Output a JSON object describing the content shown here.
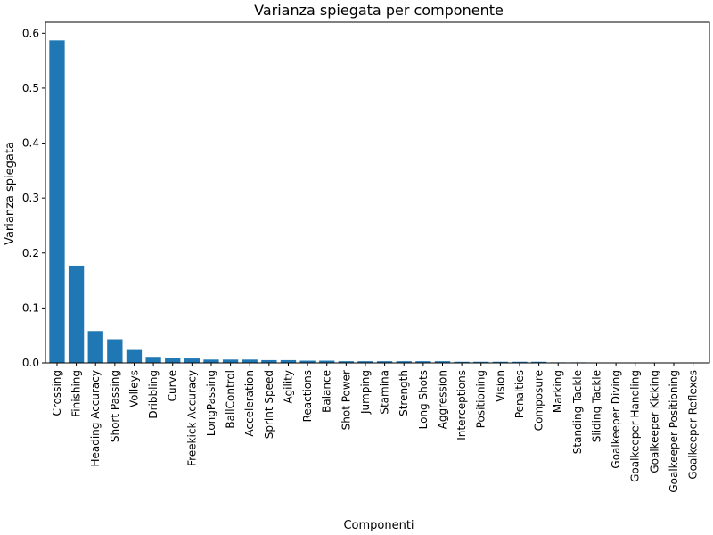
{
  "chart_data": {
    "type": "bar",
    "title": "Varianza spiegata per componente",
    "xlabel": "Componenti",
    "ylabel": "Varianza spiegata",
    "ylim": [
      0,
      0.62
    ],
    "yticks": [
      0.0,
      0.1,
      0.2,
      0.3,
      0.4,
      0.5,
      0.6
    ],
    "ytick_labels": [
      "0.0",
      "0.1",
      "0.2",
      "0.3",
      "0.4",
      "0.5",
      "0.6"
    ],
    "bar_color": "#1f77b4",
    "grid": false,
    "categories": [
      "Crossing",
      "Finishing",
      "Heading Accuracy",
      "Short Passing",
      "Volleys",
      "Dribbling",
      "Curve",
      "Freekick Accuracy",
      "LongPassing",
      "BallControl",
      "Acceleration",
      "Sprint Speed",
      "Agility",
      "Reactions",
      "Balance",
      "Shot Power",
      "Jumping",
      "Stamina",
      "Strength",
      "Long Shots",
      "Aggression",
      "Interceptions",
      "Positioning",
      "Vision",
      "Penalties",
      "Composure",
      "Marking",
      "Standing Tackle",
      "Sliding Tackle",
      "Goalkeeper Diving",
      "Goalkeeper Handling",
      "Goalkeeper Kicking",
      "Goalkeeper Positioning",
      "Goalkeeper Reflexes"
    ],
    "values": [
      0.587,
      0.177,
      0.058,
      0.043,
      0.025,
      0.011,
      0.009,
      0.008,
      0.006,
      0.006,
      0.006,
      0.005,
      0.005,
      0.004,
      0.004,
      0.003,
      0.003,
      0.003,
      0.003,
      0.003,
      0.003,
      0.002,
      0.002,
      0.002,
      0.002,
      0.002,
      0.001,
      0.001,
      0.0005,
      0.0002,
      0.0001,
      0.0001,
      0.0001,
      0.0001
    ]
  }
}
